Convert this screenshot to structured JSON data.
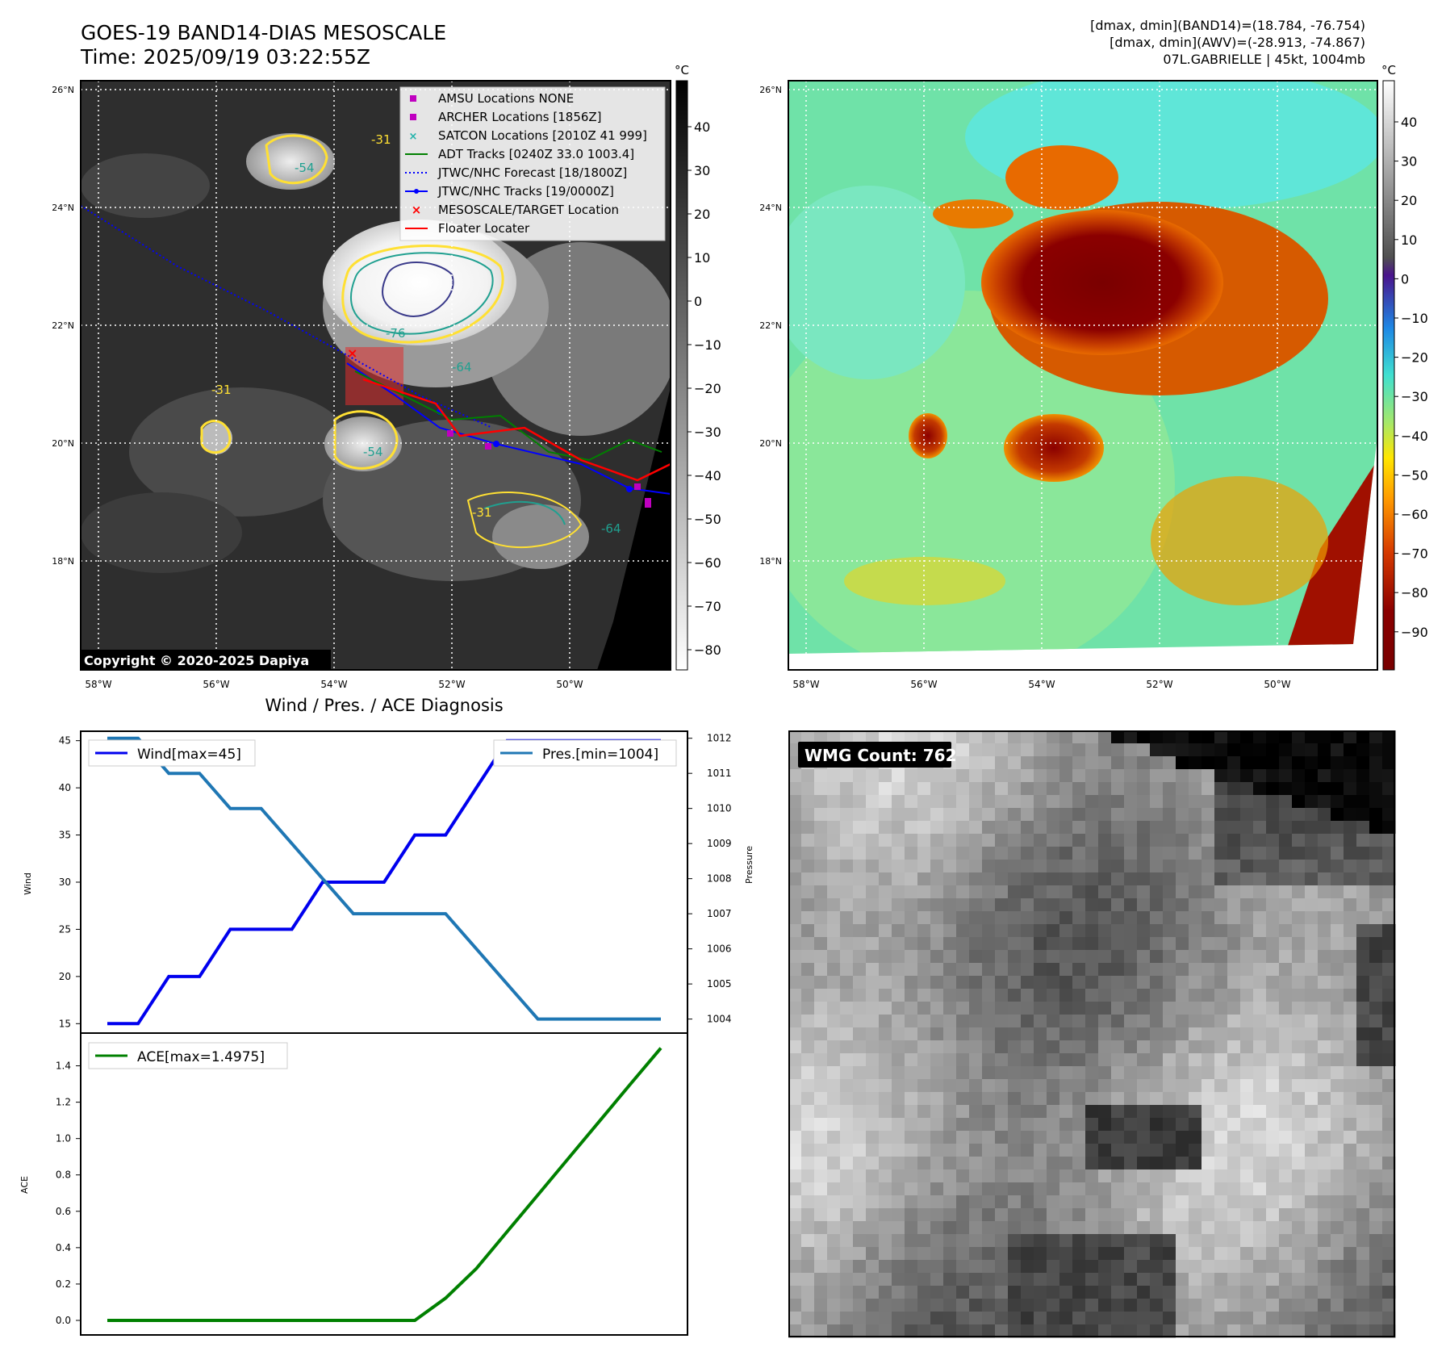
{
  "header": {
    "title": "GOES-19 BAND14-DIAS MESOSCALE",
    "time": "Time: 2025/09/19 03:22:55Z",
    "info_lines": [
      "[dmax, dmin](BAND14)=(18.784, -76.754)",
      "[dmax, dmin](AWV)=(-28.913, -74.867)",
      "07L.GABRIELLE | 45kt, 1004mb"
    ]
  },
  "maps": {
    "lat_labels": [
      "26°N",
      "24°N",
      "22°N",
      "20°N",
      "18°N"
    ],
    "lon_labels": [
      "58°W",
      "56°W",
      "54°W",
      "52°W",
      "50°W"
    ],
    "unit": "°C",
    "gray_colorbar_ticks": [
      "40",
      "30",
      "20",
      "10",
      "0",
      "−10",
      "−20",
      "−30",
      "−40",
      "−50",
      "−60",
      "−70",
      "−80"
    ],
    "color_colorbar_ticks": [
      "40",
      "30",
      "20",
      "10",
      "0",
      "−10",
      "−20",
      "−30",
      "−40",
      "−50",
      "−60",
      "−70",
      "−80",
      "−90"
    ],
    "copyright": "Copyright © 2020-2025 Dapiya",
    "contour_labels": [
      "-31",
      "-54",
      "-76",
      "-64",
      "-31",
      "-54",
      "-64",
      "-31"
    ],
    "legend": [
      {
        "label": "AMSU Locations NONE",
        "color": "#c000c0"
      },
      {
        "label": "ARCHER Locations [1856Z]",
        "color": "#c000c0"
      },
      {
        "label": "SATCON Locations [2010Z 41 999]",
        "color": "#20b2aa"
      },
      {
        "label": "ADT Tracks [0240Z 33.0 1003.4]",
        "color": "#008000"
      },
      {
        "label": "JTWC/NHC Forecast [18/1800Z]",
        "color": "#0000ff"
      },
      {
        "label": "JTWC/NHC Tracks [19/0000Z]",
        "color": "#0000ff"
      },
      {
        "label": "MESOSCALE/TARGET Location",
        "color": "#ff0000"
      },
      {
        "label": "Floater Locater",
        "color": "#ff0000"
      }
    ]
  },
  "wmg": {
    "label": "WMG Count: 762"
  },
  "chart_data": [
    {
      "type": "line",
      "title": "Wind / Pres. / ACE Diagnosis",
      "ylabel": "Wind",
      "y2label": "Pressure",
      "ylim": [
        14,
        46
      ],
      "y2lim": [
        1003.6,
        1012.2
      ],
      "yticks": [
        15,
        20,
        25,
        30,
        35,
        40,
        45
      ],
      "y2ticks": [
        1004,
        1005,
        1006,
        1007,
        1008,
        1009,
        1010,
        1011,
        1012
      ],
      "x": [
        0,
        1,
        2,
        3,
        4,
        5,
        6,
        7,
        8,
        9,
        10,
        11,
        12,
        13,
        14,
        15,
        16,
        17,
        18
      ],
      "series": [
        {
          "name": "Wind[max=45]",
          "axis": "left",
          "color": "#0000ee",
          "values": [
            15,
            15,
            20,
            20,
            25,
            25,
            25,
            30,
            30,
            30,
            35,
            35,
            40,
            45,
            45,
            45,
            45,
            45,
            45
          ]
        },
        {
          "name": "Pres.[min=1004]",
          "axis": "right",
          "color": "#1f77b4",
          "values": [
            1012,
            1012,
            1011,
            1011,
            1010,
            1010,
            1009,
            1008,
            1007,
            1007,
            1007,
            1007,
            1006,
            1005,
            1004,
            1004,
            1004,
            1004,
            1004
          ]
        }
      ]
    },
    {
      "type": "line",
      "ylabel": "ACE",
      "ylim": [
        -0.08,
        1.58
      ],
      "yticks": [
        0.0,
        0.2,
        0.4,
        0.6,
        0.8,
        1.0,
        1.2,
        1.4
      ],
      "x": [
        0,
        1,
        2,
        3,
        4,
        5,
        6,
        7,
        8,
        9,
        10,
        11,
        12,
        13,
        14,
        15,
        16,
        17,
        18
      ],
      "series": [
        {
          "name": "ACE[max=1.4975]",
          "color": "#008000",
          "values": [
            0,
            0,
            0,
            0,
            0,
            0,
            0,
            0,
            0,
            0,
            0,
            0.1225,
            0.285,
            0.4875,
            0.69,
            0.8925,
            1.095,
            1.2975,
            1.4975
          ]
        }
      ]
    }
  ]
}
